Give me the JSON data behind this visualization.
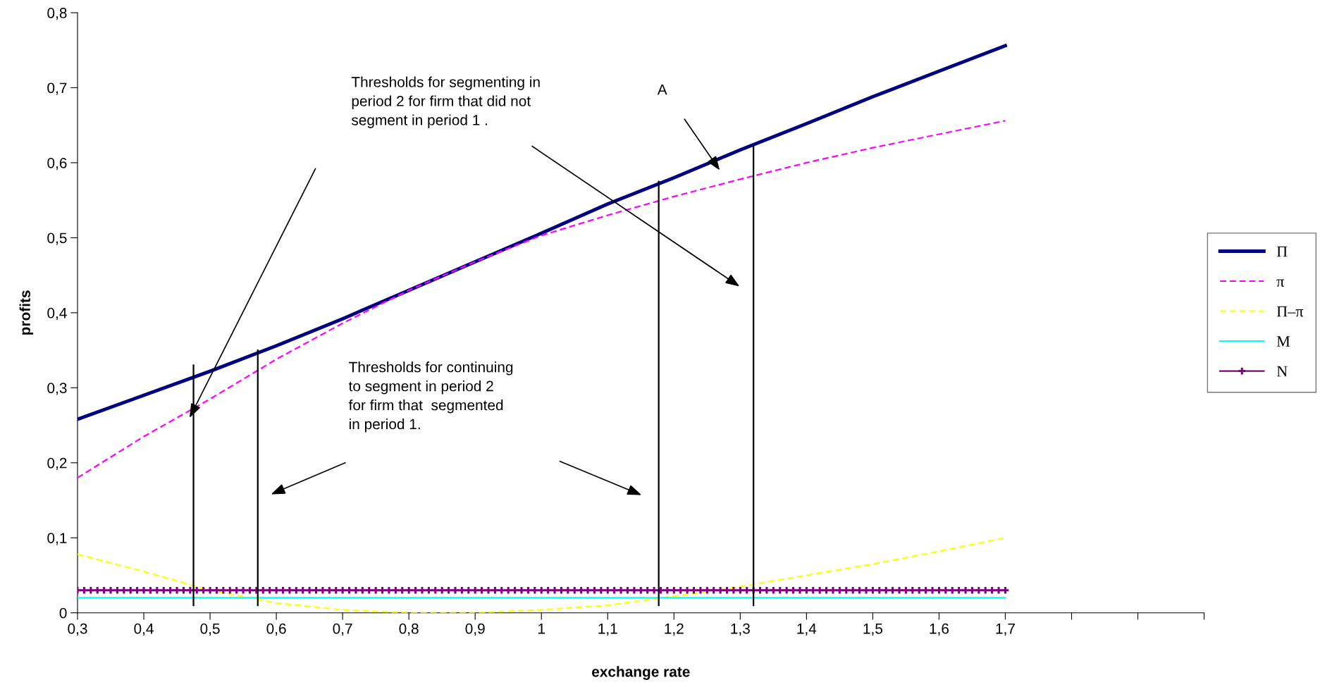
{
  "chart_data": {
    "type": "line",
    "xlabel": "exchange rate",
    "ylabel": "profits",
    "xlim": [
      0.3,
      2.0
    ],
    "xticks": [
      {
        "value": 0.3,
        "label": "0,3"
      },
      {
        "value": 0.4,
        "label": "0,4"
      },
      {
        "value": 0.5,
        "label": "0,5"
      },
      {
        "value": 0.6,
        "label": "0,6"
      },
      {
        "value": 0.7,
        "label": "0,7"
      },
      {
        "value": 0.8,
        "label": "0,8"
      },
      {
        "value": 0.9,
        "label": "0,9"
      },
      1,
      {
        "value": 1.1,
        "label": "1,1"
      },
      {
        "value": 1.2,
        "label": "1,2"
      },
      {
        "value": 1.3,
        "label": "1,3"
      },
      {
        "value": 1.4,
        "label": "1,4"
      },
      {
        "value": 1.5,
        "label": "1,5"
      },
      {
        "value": 1.6,
        "label": "1,6"
      },
      {
        "value": 1.7,
        "label": "1,7"
      },
      {
        "value": 1.8,
        "label": null
      },
      {
        "value": 1.9,
        "label": null
      },
      {
        "value": 2.0,
        "label": null
      }
    ],
    "ylim": [
      0,
      0.8
    ],
    "yticks": [
      0,
      {
        "value": 0.1,
        "label": "0,1"
      },
      {
        "value": 0.2,
        "label": "0,2"
      },
      {
        "value": 0.3,
        "label": "0,3"
      },
      {
        "value": 0.4,
        "label": "0,4"
      },
      {
        "value": 0.5,
        "label": "0,5"
      },
      {
        "value": 0.6,
        "label": "0,6"
      },
      {
        "value": 0.7,
        "label": "0,7"
      },
      {
        "value": 0.8,
        "label": "0,8"
      }
    ],
    "grid": false,
    "legend": "right",
    "x": [
      0.3,
      0.4,
      0.5,
      0.6,
      0.7,
      0.8,
      0.9,
      1.0,
      1.1,
      1.2,
      1.3,
      1.4,
      1.5,
      1.6,
      1.7
    ],
    "series": [
      {
        "name": "Π",
        "color": "#000080",
        "line_style": "solid",
        "marker": "none",
        "values": [
          0.258,
          0.29,
          0.322,
          0.356,
          0.392,
          0.43,
          0.468,
          0.506,
          0.545,
          0.58,
          0.617,
          0.652,
          0.688,
          0.722,
          0.756
        ]
      },
      {
        "name": "π",
        "color": "#ff00ff",
        "line_style": "dashed",
        "marker": "none",
        "values": [
          0.18,
          0.235,
          0.285,
          0.338,
          0.386,
          0.43,
          0.468,
          0.503,
          0.53,
          0.555,
          0.578,
          0.6,
          0.62,
          0.638,
          0.656
        ]
      },
      {
        "name": "Π–π",
        "color": "#ffff00",
        "line_style": "dashed",
        "marker": "none",
        "values": [
          0.078,
          0.055,
          0.03,
          0.013,
          0.004,
          0.0,
          0.0,
          0.004,
          0.01,
          0.022,
          0.035,
          0.05,
          0.065,
          0.082,
          0.1
        ]
      },
      {
        "name": "M",
        "color": "#00ffff",
        "line_style": "solid",
        "marker": "none",
        "values": [
          0.02,
          0.02,
          0.02,
          0.02,
          0.02,
          0.02,
          0.02,
          0.02,
          0.02,
          0.02,
          0.02,
          0.02,
          0.02,
          0.02,
          0.02
        ]
      },
      {
        "name": "N",
        "color": "#800080",
        "line_style": "solid",
        "marker": "cross",
        "x": [
          0.3,
          0.31,
          0.32,
          0.33,
          0.34,
          0.35,
          0.36,
          0.37,
          0.38,
          0.39,
          0.4,
          0.41,
          0.42,
          0.43,
          0.44,
          0.45,
          0.46,
          0.47,
          0.48,
          0.49,
          0.5,
          0.51,
          0.52,
          0.53,
          0.54,
          0.55,
          0.56,
          0.57,
          0.58,
          0.59,
          0.6,
          0.61,
          0.62,
          0.63,
          0.64,
          0.65,
          0.66,
          0.67,
          0.68,
          0.69,
          0.7,
          0.71,
          0.72,
          0.73,
          0.74,
          0.75,
          0.76,
          0.77,
          0.78,
          0.79,
          0.8,
          0.81,
          0.82,
          0.83,
          0.84,
          0.85,
          0.86,
          0.87,
          0.88,
          0.89,
          0.9,
          0.91,
          0.92,
          0.93,
          0.94,
          0.95,
          0.96,
          0.97,
          0.98,
          0.99,
          1.0,
          1.01,
          1.02,
          1.03,
          1.04,
          1.05,
          1.06,
          1.07,
          1.08,
          1.09,
          1.1,
          1.11,
          1.12,
          1.13,
          1.14,
          1.15,
          1.16,
          1.17,
          1.18,
          1.19,
          1.2,
          1.21,
          1.22,
          1.23,
          1.24,
          1.25,
          1.26,
          1.27,
          1.28,
          1.29,
          1.3,
          1.31,
          1.32,
          1.33,
          1.34,
          1.35,
          1.36,
          1.37,
          1.38,
          1.39,
          1.4,
          1.41,
          1.42,
          1.43,
          1.44,
          1.45,
          1.46,
          1.47,
          1.48,
          1.49,
          1.5,
          1.51,
          1.52,
          1.53,
          1.54,
          1.55,
          1.56,
          1.57,
          1.58,
          1.59,
          1.6,
          1.61,
          1.62,
          1.63,
          1.64,
          1.65,
          1.66,
          1.67,
          1.68,
          1.69,
          1.7
        ],
        "values": [
          0.03,
          0.03,
          0.03,
          0.03,
          0.03,
          0.03,
          0.03,
          0.03,
          0.03,
          0.03,
          0.03,
          0.03,
          0.03,
          0.03,
          0.03,
          0.03,
          0.03,
          0.03,
          0.03,
          0.03,
          0.03,
          0.03,
          0.03,
          0.03,
          0.03,
          0.03,
          0.03,
          0.03,
          0.03,
          0.03,
          0.03,
          0.03,
          0.03,
          0.03,
          0.03,
          0.03,
          0.03,
          0.03,
          0.03,
          0.03,
          0.03,
          0.03,
          0.03,
          0.03,
          0.03,
          0.03,
          0.03,
          0.03,
          0.03,
          0.03,
          0.03,
          0.03,
          0.03,
          0.03,
          0.03,
          0.03,
          0.03,
          0.03,
          0.03,
          0.03,
          0.03,
          0.03,
          0.03,
          0.03,
          0.03,
          0.03,
          0.03,
          0.03,
          0.03,
          0.03,
          0.03,
          0.03,
          0.03,
          0.03,
          0.03,
          0.03,
          0.03,
          0.03,
          0.03,
          0.03,
          0.03,
          0.03,
          0.03,
          0.03,
          0.03,
          0.03,
          0.03,
          0.03,
          0.03,
          0.03,
          0.03,
          0.03,
          0.03,
          0.03,
          0.03,
          0.03,
          0.03,
          0.03,
          0.03,
          0.03,
          0.03,
          0.03,
          0.03,
          0.03,
          0.03,
          0.03,
          0.03,
          0.03,
          0.03,
          0.03,
          0.03,
          0.03,
          0.03,
          0.03,
          0.03,
          0.03,
          0.03,
          0.03,
          0.03,
          0.03,
          0.03,
          0.03,
          0.03,
          0.03,
          0.03,
          0.03,
          0.03,
          0.03,
          0.03,
          0.03,
          0.03,
          0.03,
          0.03,
          0.03,
          0.03,
          0.03,
          0.03,
          0.03,
          0.03,
          0.03,
          0.03
        ]
      },
      {
        "color": "#000000",
        "line_style": "solid",
        "marker": "none",
        "x": [
          0.475,
          0.475
        ],
        "values": [
          0.01,
          0.33
        ]
      },
      {
        "color": "#000000",
        "line_style": "solid",
        "marker": "none",
        "x": [
          0.572,
          0.572
        ],
        "values": [
          0.01,
          0.35
        ]
      },
      {
        "color": "#000000",
        "line_style": "solid",
        "marker": "none",
        "x": [
          1.177,
          1.177
        ],
        "values": [
          0.01,
          0.575
        ]
      },
      {
        "color": "#000000",
        "line_style": "solid",
        "marker": "none",
        "x": [
          1.32,
          1.32
        ],
        "values": [
          0.01,
          0.622
        ]
      }
    ],
    "annotations": [
      "Thresholds for segmenting in\nperiod 2 for firm that did not\nsegment in period 1 .",
      "A",
      "Thresholds for continuing\nto segment in period 2\nfor firm that  segmented\nin period 1."
    ]
  }
}
